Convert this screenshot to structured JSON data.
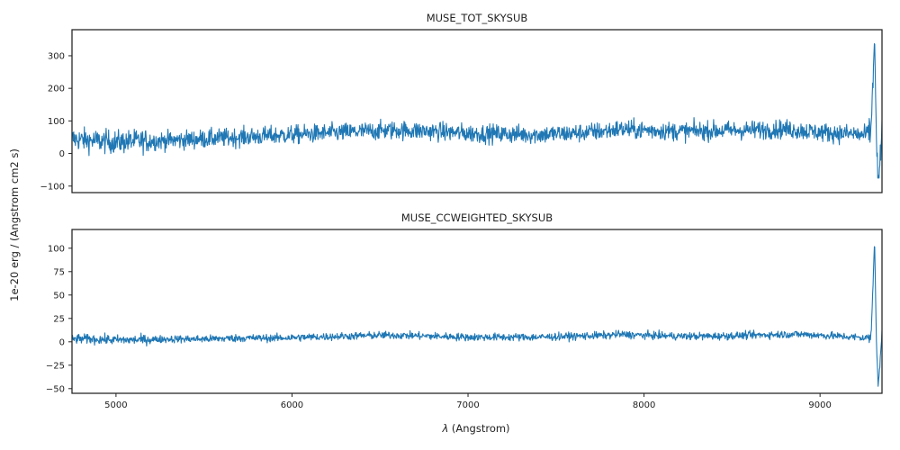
{
  "figure": {
    "ylabel": "1e-20 erg / (Angstrom cm2 s)",
    "xlabel_sym": "λ",
    "xlabel_rest": " (Angstrom)"
  },
  "chart_data": [
    {
      "type": "line",
      "title": "MUSE_TOT_SKYSUB",
      "xlim": [
        4750,
        9352
      ],
      "ylim": [
        -120,
        380
      ],
      "yticks": [
        -100,
        0,
        100,
        200,
        300
      ],
      "xticks": [],
      "ylabel": "1e-20 erg / (Angstrom cm2 s)",
      "xlabel": "",
      "color": "#1f77b4",
      "series": [
        {
          "x": [
            4750,
            4850,
            5000,
            5100,
            5300,
            5500,
            5700,
            5900,
            6100,
            6300,
            6500,
            6600,
            6800,
            7000,
            7200,
            7400,
            7600,
            7800,
            7850,
            8000,
            8200,
            8400,
            8600,
            8800,
            8900,
            9000,
            9100,
            9200,
            9250,
            9290,
            9310,
            9320,
            9330,
            9352
          ],
          "y": [
            45,
            40,
            35,
            38,
            40,
            45,
            50,
            55,
            60,
            65,
            70,
            72,
            68,
            62,
            60,
            58,
            62,
            70,
            75,
            72,
            68,
            70,
            72,
            75,
            70,
            65,
            62,
            60,
            55,
            70,
            360,
            60,
            -100,
            60
          ]
        }
      ]
    },
    {
      "type": "line",
      "title": "MUSE_CCWEIGHTED_SKYSUB",
      "xlim": [
        4750,
        9352
      ],
      "ylim": [
        -55,
        120
      ],
      "yticks": [
        -50,
        -25,
        0,
        25,
        50,
        75,
        100
      ],
      "xticks": [
        5000,
        6000,
        7000,
        8000,
        9000
      ],
      "ylabel": "1e-20 erg / (Angstrom cm2 s)",
      "xlabel": "λ (Angstrom)",
      "color": "#1f77b4",
      "series": [
        {
          "x": [
            4750,
            4850,
            5000,
            5100,
            5300,
            5500,
            5700,
            5900,
            6100,
            6300,
            6500,
            6600,
            6800,
            7000,
            7200,
            7400,
            7600,
            7800,
            7850,
            8000,
            8200,
            8400,
            8600,
            8800,
            8900,
            9000,
            9100,
            9200,
            9250,
            9290,
            9310,
            9320,
            9330,
            9352
          ],
          "y": [
            3,
            3,
            2,
            2,
            3,
            3,
            4,
            4,
            5,
            6,
            7,
            7,
            6,
            5,
            5,
            5,
            6,
            7,
            8,
            7,
            6,
            6,
            7,
            8,
            8,
            7,
            6,
            5,
            4,
            5,
            110,
            5,
            -48,
            10
          ]
        }
      ]
    }
  ]
}
